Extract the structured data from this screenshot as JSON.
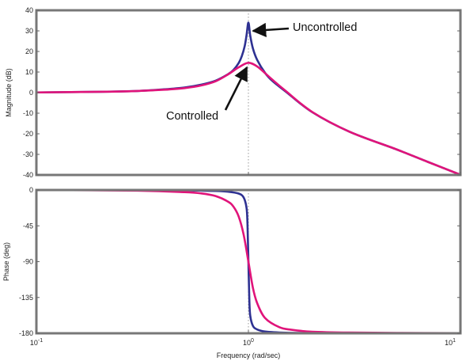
{
  "chart_data": [
    {
      "type": "line",
      "panel": "magnitude",
      "ylabel": "Magnitude (dB)",
      "xscale": "log",
      "xlim": [
        0.1,
        10
      ],
      "ylim": [
        -40,
        40
      ],
      "yticks": [
        "40",
        "30",
        "20",
        "10",
        "0",
        "-10",
        "-20",
        "-30",
        "-40"
      ],
      "annotations": [
        "Uncontrolled",
        "Controlled"
      ],
      "series": [
        {
          "name": "Uncontrolled",
          "color": "#2e3192",
          "x": [
            0.1,
            0.2,
            0.3,
            0.4,
            0.5,
            0.6,
            0.7,
            0.8,
            0.85,
            0.9,
            0.93,
            0.96,
            0.98,
            1.0,
            1.02,
            1.05,
            1.1,
            1.2,
            1.3,
            1.5,
            2,
            3,
            5,
            7,
            10
          ],
          "y": [
            0.1,
            0.4,
            0.8,
            1.6,
            2.5,
            3.9,
            5.8,
            8.9,
            11.0,
            14.4,
            17.6,
            22.5,
            27.9,
            34.0,
            27.7,
            21.5,
            15.9,
            9.5,
            5.6,
            0.5,
            -9.5,
            -19.0,
            -27.6,
            -33.6,
            -39.9
          ]
        },
        {
          "name": "Controlled",
          "color": "#e0147a",
          "x": [
            0.1,
            0.2,
            0.3,
            0.4,
            0.5,
            0.6,
            0.7,
            0.8,
            0.9,
            1.0,
            1.1,
            1.2,
            1.3,
            1.5,
            2,
            3,
            5,
            7,
            10
          ],
          "y": [
            0.1,
            0.4,
            0.8,
            1.4,
            2.2,
            3.5,
            5.5,
            8.8,
            12.3,
            14.5,
            12.7,
            9.4,
            6.2,
            0.8,
            -9.4,
            -19.0,
            -27.6,
            -33.6,
            -39.9
          ]
        }
      ]
    },
    {
      "type": "line",
      "panel": "phase",
      "ylabel": "Phase (deg)",
      "xlabel": "Frequency  (rad/sec)",
      "xscale": "log",
      "xlim": [
        0.1,
        10
      ],
      "ylim": [
        -180,
        0
      ],
      "xticks": [
        "10",
        "10",
        "10"
      ],
      "xtick_exponents": [
        "-1",
        "0",
        "1"
      ],
      "yticks": [
        "0",
        "-45",
        "-90",
        "-135",
        "-180"
      ],
      "series": [
        {
          "name": "Uncontrolled",
          "color": "#2e3192",
          "x": [
            0.1,
            0.3,
            0.5,
            0.7,
            0.8,
            0.9,
            0.95,
            0.98,
            0.99,
            1.0,
            1.01,
            1.02,
            1.05,
            1.1,
            1.2,
            1.5,
            2,
            5,
            10
          ],
          "y": [
            0,
            -0.2,
            -0.5,
            -1.2,
            -2.1,
            -4.5,
            -9.5,
            -22.4,
            -42.5,
            -90,
            -137.5,
            -157.8,
            -170.6,
            -175.2,
            -177.8,
            -179.3,
            -179.6,
            -179.9,
            -180
          ]
        },
        {
          "name": "Controlled",
          "color": "#e0147a",
          "x": [
            0.1,
            0.3,
            0.5,
            0.6,
            0.7,
            0.8,
            0.85,
            0.9,
            0.95,
            1.0,
            1.05,
            1.1,
            1.2,
            1.4,
            1.6,
            2,
            3,
            5,
            10
          ],
          "y": [
            0,
            -0.8,
            -2.7,
            -4.3,
            -7.6,
            -14.5,
            -20.9,
            -33.4,
            -56.3,
            -90,
            -122.8,
            -142.1,
            -161.0,
            -172.4,
            -175.6,
            -178.0,
            -179.1,
            -179.5,
            -179.8
          ]
        }
      ]
    }
  ]
}
